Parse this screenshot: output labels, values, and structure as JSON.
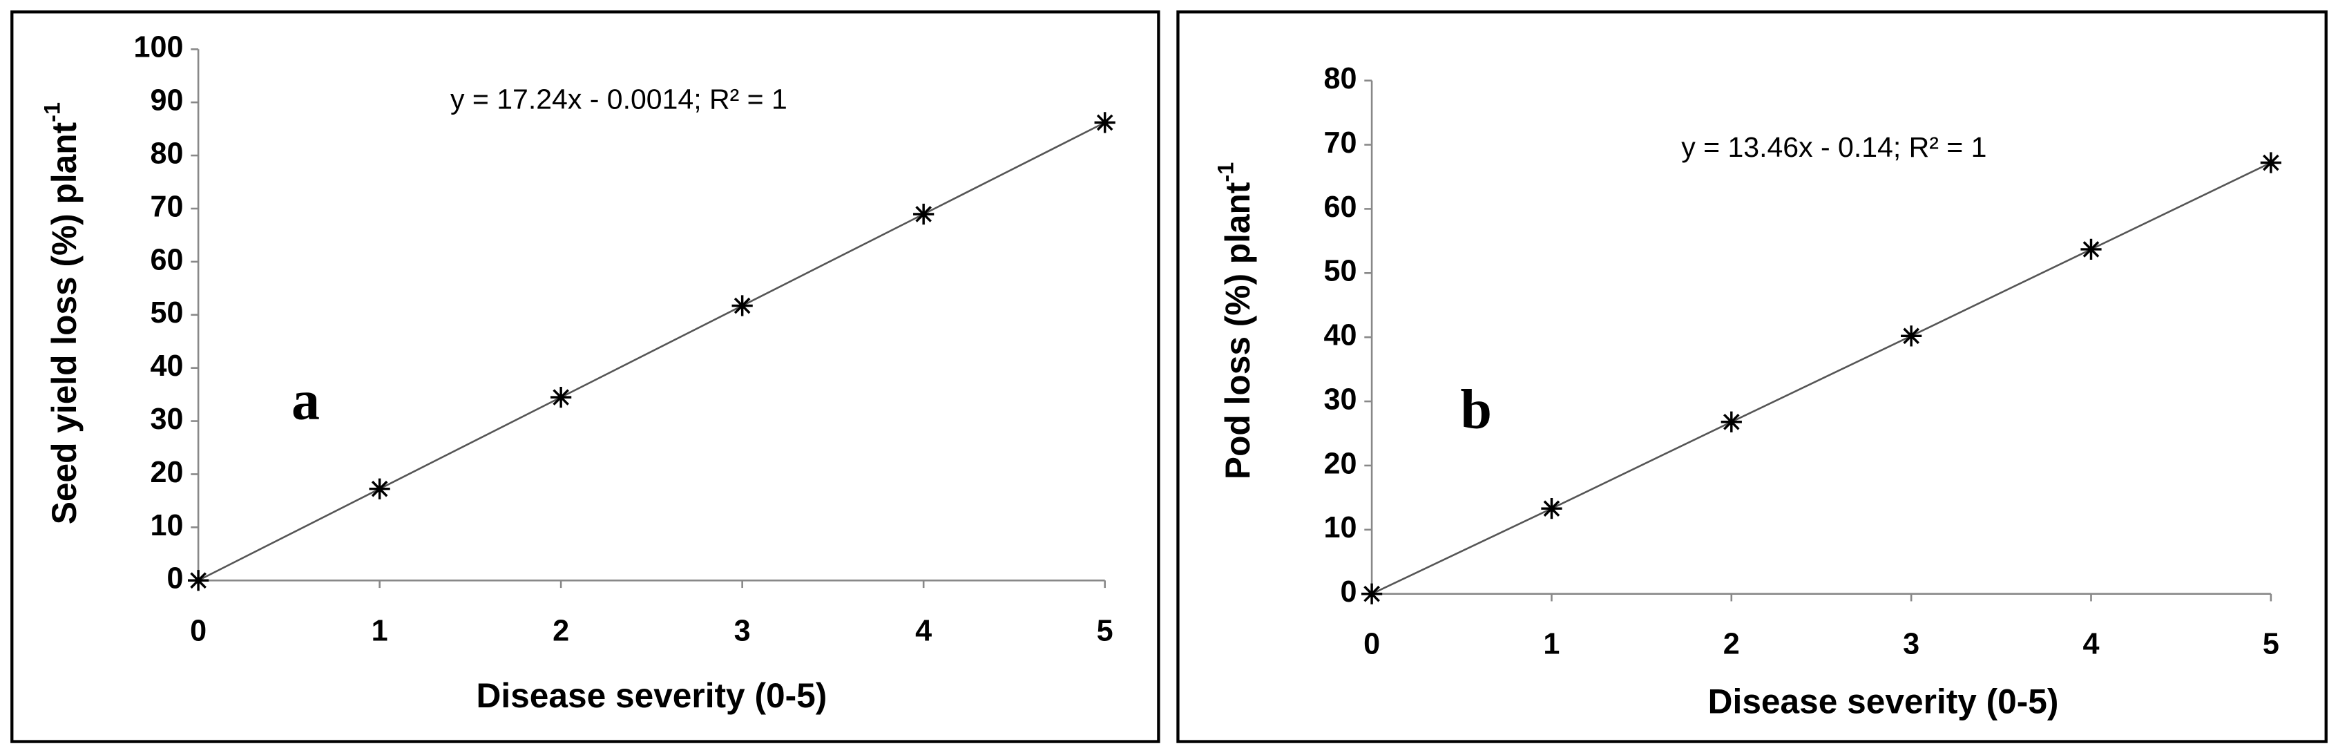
{
  "chart_data": [
    {
      "type": "scatter",
      "panel_label": "a",
      "equation": "y = 17.24x - 0.0014; R² = 1",
      "xlabel": "Disease severity (0-5)",
      "ylabel": "Seed yield loss (%) plant",
      "ylabel_sup": "-1",
      "x": [
        0,
        1,
        2,
        3,
        4,
        5
      ],
      "series": [
        {
          "color": "#000000",
          "values": [
            0,
            17.24,
            34.48,
            51.72,
            68.96,
            86.2
          ]
        }
      ],
      "xlim": [
        0,
        5
      ],
      "xticks": [
        0,
        1,
        2,
        3,
        4,
        5
      ],
      "ylim": [
        0,
        100
      ],
      "yticks": [
        0,
        10,
        20,
        30,
        40,
        50,
        60,
        70,
        80,
        90,
        100
      ]
    },
    {
      "type": "scatter",
      "panel_label": "b",
      "equation": "y = 13.46x - 0.14; R² = 1",
      "xlabel": "Disease severity (0-5)",
      "ylabel": "Pod loss (%) plant",
      "ylabel_sup": "-1",
      "x": [
        0,
        1,
        2,
        3,
        4,
        5
      ],
      "series": [
        {
          "color": "#000000",
          "values": [
            0,
            13.3,
            26.8,
            40.2,
            53.7,
            67.2
          ]
        }
      ],
      "xlim": [
        0,
        5
      ],
      "xticks": [
        0,
        1,
        2,
        3,
        4,
        5
      ],
      "ylim": [
        0,
        80
      ],
      "yticks": [
        0,
        10,
        20,
        30,
        40,
        50,
        60,
        70,
        80
      ]
    }
  ]
}
